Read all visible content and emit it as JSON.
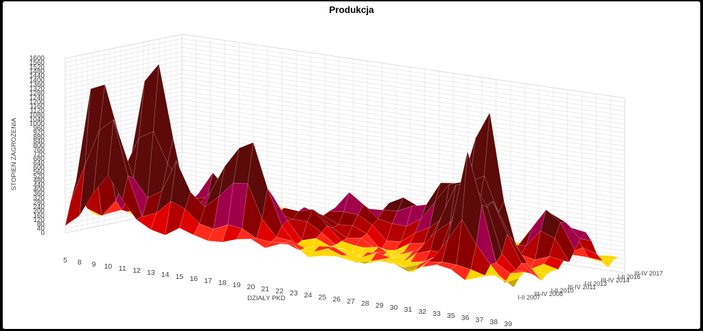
{
  "chart_data": {
    "type": "surface",
    "title": "Produkcja",
    "xlabel": "DZIAŁY PKD",
    "zlabel": "STOPIEŃ ZAGROŻENIA",
    "ylabel": "",
    "x_categories": [
      "5",
      "8",
      "9",
      "10",
      "11",
      "12",
      "13",
      "14",
      "15",
      "16",
      "17",
      "18",
      "19",
      "20",
      "21",
      "22",
      "23",
      "24",
      "25",
      "26",
      "27",
      "28",
      "29",
      "30",
      "31",
      "32",
      "33",
      "35",
      "36",
      "37",
      "38",
      "39"
    ],
    "y_labels_shown": [
      "I-II 2007",
      "III-IV 2008",
      "I-II 2010",
      "III-IV 2011",
      "I-II 2013",
      "III-IV 2014",
      "I-II 2016",
      "III-IV 2017"
    ],
    "y_label_positions": [
      0,
      3,
      6,
      9,
      12,
      15,
      18,
      21
    ],
    "y_count": 22,
    "zlim": [
      0,
      1600
    ],
    "z_tick_step": 40,
    "color_bands": [
      {
        "from": 0,
        "to": 40,
        "color": "#3cb44b"
      },
      {
        "from": 40,
        "to": 80,
        "color": "#1f8a1f"
      },
      {
        "from": 80,
        "to": 120,
        "color": "#c9a800"
      },
      {
        "from": 120,
        "to": 160,
        "color": "#ffd700"
      },
      {
        "from": 160,
        "to": 200,
        "color": "#ff2a1a"
      },
      {
        "from": 200,
        "to": 240,
        "color": "#e00000"
      },
      {
        "from": 240,
        "to": 320,
        "color": "#b30000"
      },
      {
        "from": 320,
        "to": 400,
        "color": "#8a0000"
      },
      {
        "from": 400,
        "to": 480,
        "color": "#a0004a"
      },
      {
        "from": 480,
        "to": 1600,
        "color": "#5c0a0a"
      }
    ],
    "peaks": [
      {
        "x": 1,
        "y": 2,
        "z": 820,
        "spread": 1.0
      },
      {
        "x": 2,
        "y": 2,
        "z": 740,
        "spread": 1.0
      },
      {
        "x": 3,
        "y": 1,
        "z": 860,
        "spread": 1.2
      },
      {
        "x": 4,
        "y": 4,
        "z": 640,
        "spread": 1.4
      },
      {
        "x": 5,
        "y": 4,
        "z": 1180,
        "spread": 1.3
      },
      {
        "x": 7,
        "y": 2,
        "z": 560,
        "spread": 1.2
      },
      {
        "x": 8,
        "y": 6,
        "z": 460,
        "spread": 1.5
      },
      {
        "x": 10,
        "y": 3,
        "z": 520,
        "spread": 1.5
      },
      {
        "x": 12,
        "y": 3,
        "z": 820,
        "spread": 1.3
      },
      {
        "x": 14,
        "y": 6,
        "z": 300,
        "spread": 2.0
      },
      {
        "x": 16,
        "y": 10,
        "z": 360,
        "spread": 2.0
      },
      {
        "x": 19,
        "y": 12,
        "z": 340,
        "spread": 2.0
      },
      {
        "x": 22,
        "y": 11,
        "z": 480,
        "spread": 1.6
      },
      {
        "x": 24,
        "y": 10,
        "z": 560,
        "spread": 1.8
      },
      {
        "x": 25,
        "y": 6,
        "z": 620,
        "spread": 1.5
      },
      {
        "x": 26,
        "y": 8,
        "z": 700,
        "spread": 1.3
      },
      {
        "x": 27,
        "y": 3,
        "z": 1040,
        "spread": 1.2
      },
      {
        "x": 27,
        "y": 7,
        "z": 1120,
        "spread": 1.1
      },
      {
        "x": 28,
        "y": 5,
        "z": 560,
        "spread": 1.4
      },
      {
        "x": 29,
        "y": 12,
        "z": 380,
        "spread": 1.8
      },
      {
        "x": 30,
        "y": 14,
        "z": 300,
        "spread": 1.8
      }
    ]
  }
}
